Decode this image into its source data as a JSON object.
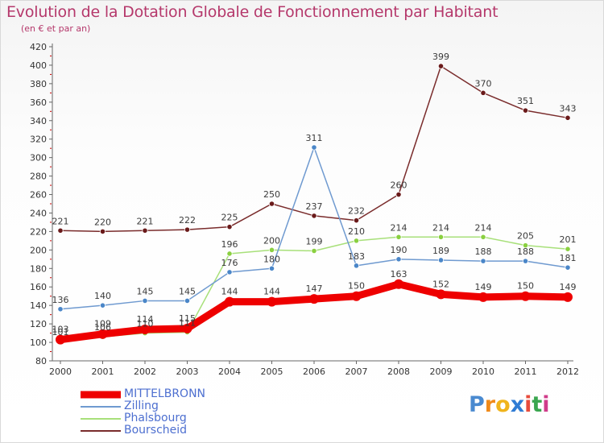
{
  "title": "Evolution de la Dotation Globale de Fonctionnement par Habitant",
  "subtitle": "(en € et par an)",
  "logo": {
    "text": "Proxiti",
    "letter_colors": [
      "#4a8ad0",
      "#f08a1a",
      "#f0b41c",
      "#2f7cd4",
      "#e74c3c",
      "#3aa64f",
      "#d03c8a"
    ]
  },
  "colors": {
    "title": "#b5386b",
    "axis": "#666666",
    "grid_tick": "#cc0000",
    "legend_text": "#4d6fd0"
  },
  "chart_data": {
    "type": "line",
    "title": "Evolution de la Dotation Globale de Fonctionnement par Habitant",
    "subtitle": "(en € et par an)",
    "xlabel": "",
    "ylabel": "",
    "x": [
      "2000",
      "2001",
      "2002",
      "2003",
      "2004",
      "2005",
      "2006",
      "2007",
      "2008",
      "2009",
      "2010",
      "2011",
      "2012"
    ],
    "ylim": [
      80,
      420
    ],
    "yticks": [
      80,
      100,
      120,
      140,
      160,
      180,
      200,
      220,
      240,
      260,
      280,
      300,
      320,
      340,
      360,
      380,
      400,
      420
    ],
    "grid": false,
    "legend_position": "bottom-left",
    "series": [
      {
        "name": "MITTELBRONN",
        "color": "#ee0000",
        "marker_color": "#ee0000",
        "thick": true,
        "values": [
          103,
          109,
          114,
          115,
          144,
          144,
          147,
          150,
          163,
          152,
          149,
          150,
          149
        ]
      },
      {
        "name": "Zilling",
        "color": "#6f9ad0",
        "marker_color": "#4a86c8",
        "thick": false,
        "values": [
          136,
          140,
          145,
          145,
          176,
          180,
          311,
          183,
          190,
          189,
          188,
          188,
          181
        ]
      },
      {
        "name": "Phalsbourg",
        "color": "#a8e07a",
        "marker_color": "#8ad040",
        "thick": false,
        "values": [
          101,
          106,
          110,
          111,
          196,
          200,
          199,
          210,
          214,
          214,
          214,
          205,
          201
        ]
      },
      {
        "name": "Bourscheid",
        "color": "#7a2c2c",
        "marker_color": "#6a1a1a",
        "thick": false,
        "values": [
          221,
          220,
          221,
          222,
          225,
          250,
          237,
          232,
          260,
          399,
          370,
          351,
          343
        ]
      }
    ]
  }
}
